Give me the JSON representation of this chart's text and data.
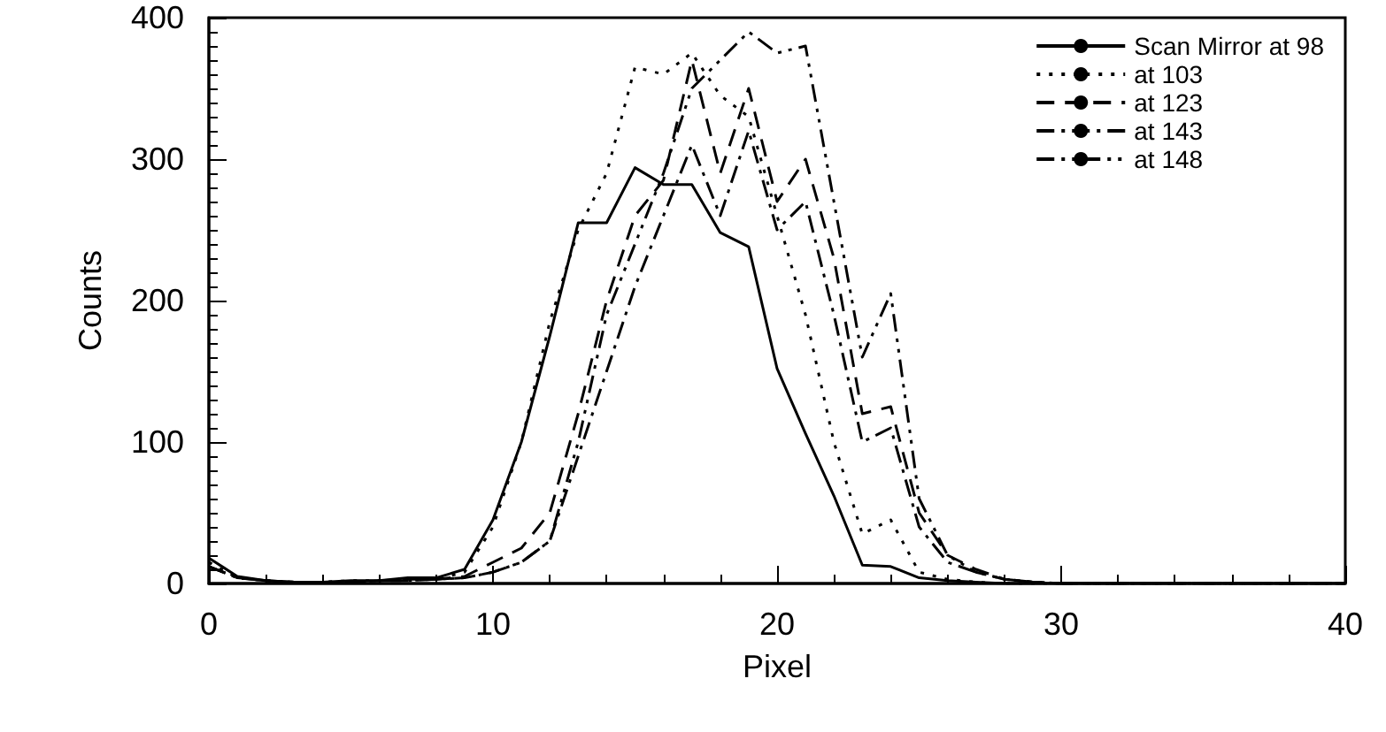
{
  "chart_data": {
    "type": "line",
    "xlabel": "Pixel",
    "ylabel": "Counts",
    "x": [
      0,
      1,
      2,
      3,
      4,
      5,
      6,
      7,
      8,
      9,
      10,
      11,
      12,
      13,
      14,
      15,
      16,
      17,
      18,
      19,
      20,
      21,
      22,
      23,
      24,
      25,
      26,
      27,
      28,
      29,
      30,
      31,
      32,
      33,
      34,
      35,
      36,
      37,
      38,
      39,
      40
    ],
    "series": [
      {
        "name": "Scan Mirror at 98",
        "color": "#000000",
        "line_style": "solid",
        "values": [
          18,
          5,
          2,
          1,
          1,
          2,
          2,
          4,
          4,
          10,
          45,
          100,
          175,
          255,
          255,
          294,
          282,
          282,
          248,
          238,
          152,
          106,
          62,
          13,
          12,
          4,
          2,
          1,
          0,
          0,
          0,
          0,
          0,
          0,
          0,
          0,
          0,
          0,
          0,
          0,
          0
        ]
      },
      {
        "name": "at 103",
        "color": "#000000",
        "line_style": "dotted",
        "values": [
          15,
          4,
          2,
          1,
          1,
          2,
          2,
          3,
          3,
          8,
          40,
          100,
          185,
          250,
          290,
          365,
          360,
          375,
          345,
          330,
          260,
          190,
          100,
          35,
          45,
          8,
          3,
          1,
          0,
          0,
          0,
          0,
          0,
          0,
          0,
          0,
          0,
          0,
          0,
          0,
          0
        ]
      },
      {
        "name": "at 123",
        "color": "#000000",
        "line_style": "dashed",
        "values": [
          12,
          4,
          2,
          1,
          1,
          1,
          2,
          3,
          3,
          5,
          15,
          25,
          50,
          120,
          200,
          260,
          285,
          370,
          290,
          350,
          270,
          300,
          230,
          120,
          125,
          50,
          20,
          10,
          3,
          1,
          0,
          0,
          0,
          0,
          0,
          0,
          0,
          0,
          0,
          0,
          0
        ]
      },
      {
        "name": "at 143",
        "color": "#000000",
        "line_style": "dashdot",
        "values": [
          12,
          4,
          2,
          1,
          1,
          1,
          2,
          2,
          3,
          4,
          8,
          15,
          30,
          90,
          150,
          210,
          260,
          310,
          260,
          320,
          250,
          270,
          190,
          100,
          110,
          40,
          15,
          8,
          3,
          1,
          0,
          0,
          0,
          0,
          0,
          0,
          0,
          0,
          0,
          0,
          0
        ]
      },
      {
        "name": "at 148",
        "color": "#000000",
        "line_style": "dashdotdot",
        "values": [
          12,
          4,
          2,
          1,
          1,
          1,
          2,
          2,
          3,
          4,
          8,
          15,
          30,
          100,
          190,
          240,
          290,
          350,
          370,
          390,
          375,
          380,
          270,
          160,
          205,
          60,
          20,
          8,
          3,
          1,
          0,
          0,
          0,
          0,
          0,
          0,
          0,
          0,
          0,
          0,
          0
        ]
      }
    ],
    "xlim": [
      0,
      40
    ],
    "xticks": [
      0,
      10,
      20,
      30,
      40
    ],
    "ylim": [
      0,
      400
    ],
    "yticks": [
      0,
      100,
      200,
      300,
      400
    ],
    "legend": "top right",
    "marker": "none",
    "grid": false
  }
}
